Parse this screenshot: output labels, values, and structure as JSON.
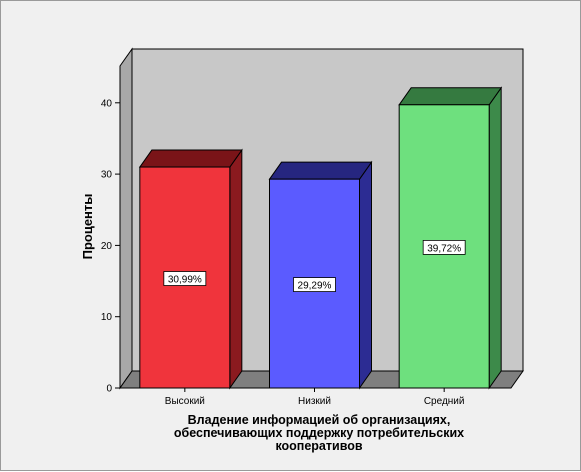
{
  "chart_data": {
    "type": "bar",
    "style": "3d",
    "categories": [
      "Высокий",
      "Низкий",
      "Средний"
    ],
    "values": [
      30.99,
      29.29,
      39.72
    ],
    "value_labels": [
      "30,99%",
      "29,29%",
      "39,72%"
    ],
    "ylabel": "Проценты",
    "xlabel_lines": [
      "Владение информацией об организациях,",
      "обеспечивающих поддержку потребительских",
      "кооперативов"
    ],
    "ylim": [
      0,
      45
    ],
    "yticks": [
      0,
      10,
      20,
      30,
      40
    ],
    "grid": false,
    "legend": "none",
    "colors": {
      "bars": [
        "#f0343c",
        "#5b5bff",
        "#6ee07e"
      ],
      "bars_side": [
        "#8b1a1f",
        "#2c2c93",
        "#3d8a4a"
      ],
      "bars_top": [
        "#7a1418",
        "#262680",
        "#357a40"
      ],
      "back_wall": "#c8c8c8",
      "floor": "#7f7f7f",
      "frame_bg": "#f0f0f0"
    }
  }
}
